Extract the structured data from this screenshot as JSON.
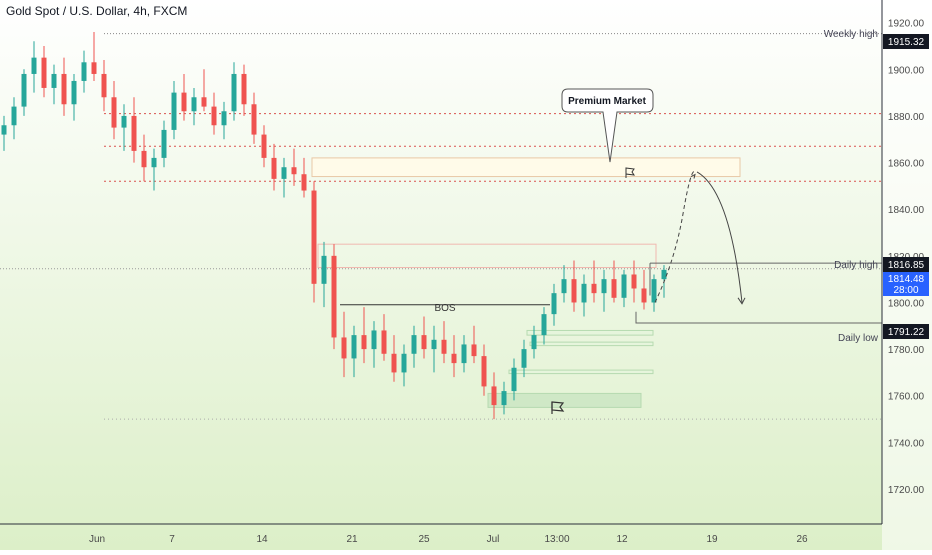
{
  "header": {
    "title": "Gold Spot / U.S. Dollar, 4h, FXCM"
  },
  "colors": {
    "bg_top": "#ffffff",
    "bg_bottom": "#dcefc8",
    "up": "#26a69a",
    "down": "#ef5350",
    "bullet_red": "#d9534f",
    "axis_text": "#4a4a4a",
    "level_line": "#666666",
    "zone_fill": "#cfe8c6",
    "zone_stroke": "#b6dab0",
    "price_badge_bg": "#2962ff",
    "dark_badge_bg": "#131722"
  },
  "annotations": {
    "weekly_high_label": "Weekly high",
    "daily_high_label": "Daily high",
    "daily_low_label": "Daily low",
    "bos_label": "BOS",
    "premium_market_label": "Premium Market"
  },
  "price_badges": {
    "weekly_high": "1915.32",
    "daily_high": "1816.85",
    "current_price": "1814.48",
    "countdown": "28:00",
    "daily_low": "1791.22"
  },
  "chart_data": {
    "type": "candlestick",
    "symbol": "Gold Spot / U.S. Dollar",
    "timeframe": "4h",
    "y_ticks": [
      1720,
      1740,
      1760,
      1780,
      1800,
      1820,
      1840,
      1860,
      1880,
      1900,
      1920
    ],
    "y_tick_labels": [
      "1720.00",
      "1740.00",
      "1760.00",
      "1780.00",
      "1800.00",
      "1820.00",
      "1840.00",
      "1860.00",
      "1880.00",
      "1900.00",
      "1920.00"
    ],
    "ylim": [
      1705,
      1928
    ],
    "x_tick_labels": [
      "Jun",
      "7",
      "14",
      "21",
      "25",
      "Jul",
      "13:00",
      "12",
      "19",
      "26"
    ],
    "levels": {
      "weekly_high": 1915.32,
      "daily_high": 1816.85,
      "daily_low": 1791.22,
      "current": 1814.48,
      "bos": 1799
    },
    "candles": [
      [
        1872,
        1880,
        1865,
        1876
      ],
      [
        1876,
        1888,
        1870,
        1884
      ],
      [
        1884,
        1900,
        1880,
        1898
      ],
      [
        1898,
        1912,
        1890,
        1905
      ],
      [
        1905,
        1910,
        1888,
        1892
      ],
      [
        1892,
        1902,
        1885,
        1898
      ],
      [
        1898,
        1905,
        1880,
        1885
      ],
      [
        1885,
        1898,
        1878,
        1895
      ],
      [
        1895,
        1908,
        1890,
        1903
      ],
      [
        1903,
        1916,
        1895,
        1898
      ],
      [
        1898,
        1904,
        1882,
        1888
      ],
      [
        1888,
        1895,
        1870,
        1875
      ],
      [
        1875,
        1885,
        1865,
        1880
      ],
      [
        1880,
        1888,
        1860,
        1865
      ],
      [
        1865,
        1872,
        1852,
        1858
      ],
      [
        1858,
        1866,
        1848,
        1862
      ],
      [
        1862,
        1878,
        1858,
        1874
      ],
      [
        1874,
        1895,
        1870,
        1890
      ],
      [
        1890,
        1898,
        1878,
        1882
      ],
      [
        1882,
        1892,
        1876,
        1888
      ],
      [
        1888,
        1900,
        1882,
        1884
      ],
      [
        1884,
        1890,
        1872,
        1876
      ],
      [
        1876,
        1886,
        1870,
        1882
      ],
      [
        1882,
        1903,
        1878,
        1898
      ],
      [
        1898,
        1902,
        1880,
        1885
      ],
      [
        1885,
        1890,
        1868,
        1872
      ],
      [
        1872,
        1876,
        1858,
        1862
      ],
      [
        1862,
        1868,
        1848,
        1853
      ],
      [
        1853,
        1862,
        1845,
        1858
      ],
      [
        1858,
        1866,
        1850,
        1855
      ],
      [
        1855,
        1862,
        1845,
        1848
      ],
      [
        1848,
        1852,
        1800,
        1808
      ],
      [
        1808,
        1826,
        1798,
        1820
      ],
      [
        1820,
        1825,
        1780,
        1785
      ],
      [
        1785,
        1796,
        1768,
        1776
      ],
      [
        1776,
        1790,
        1768,
        1786
      ],
      [
        1786,
        1798,
        1774,
        1780
      ],
      [
        1780,
        1792,
        1772,
        1788
      ],
      [
        1788,
        1795,
        1775,
        1778
      ],
      [
        1778,
        1786,
        1766,
        1770
      ],
      [
        1770,
        1782,
        1764,
        1778
      ],
      [
        1778,
        1790,
        1772,
        1786
      ],
      [
        1786,
        1794,
        1776,
        1780
      ],
      [
        1780,
        1790,
        1770,
        1784
      ],
      [
        1784,
        1792,
        1774,
        1778
      ],
      [
        1778,
        1786,
        1768,
        1774
      ],
      [
        1774,
        1786,
        1770,
        1782
      ],
      [
        1782,
        1790,
        1774,
        1777
      ],
      [
        1777,
        1782,
        1760,
        1764
      ],
      [
        1764,
        1770,
        1750,
        1756
      ],
      [
        1756,
        1766,
        1752,
        1762
      ],
      [
        1762,
        1776,
        1758,
        1772
      ],
      [
        1772,
        1784,
        1768,
        1780
      ],
      [
        1780,
        1790,
        1776,
        1786
      ],
      [
        1786,
        1798,
        1782,
        1795
      ],
      [
        1795,
        1808,
        1790,
        1804
      ],
      [
        1804,
        1816,
        1800,
        1810
      ],
      [
        1810,
        1818,
        1796,
        1800
      ],
      [
        1800,
        1812,
        1794,
        1808
      ],
      [
        1808,
        1818,
        1800,
        1804
      ],
      [
        1804,
        1814,
        1796,
        1810
      ],
      [
        1810,
        1818,
        1800,
        1802
      ],
      [
        1802,
        1814,
        1798,
        1812
      ],
      [
        1812,
        1818,
        1800,
        1806
      ],
      [
        1806,
        1814,
        1797,
        1800
      ],
      [
        1800,
        1812,
        1796,
        1810
      ],
      [
        1810,
        1816,
        1802,
        1814
      ]
    ],
    "projected_path": [
      1800,
      1818,
      1838,
      1856,
      1848,
      1800
    ]
  }
}
